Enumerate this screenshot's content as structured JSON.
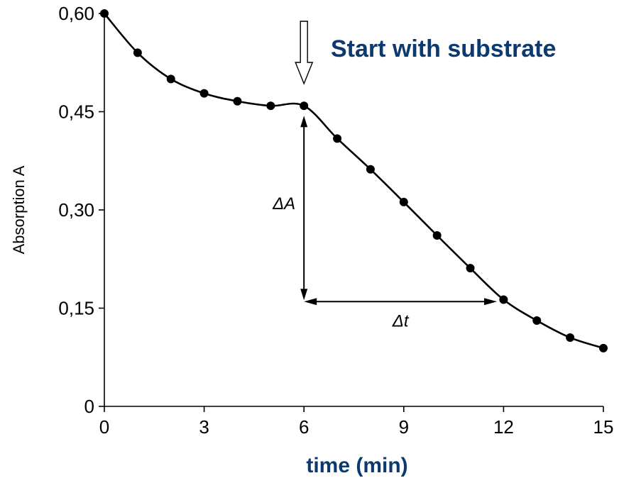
{
  "chart_data": {
    "type": "line",
    "title": "",
    "xlabel": "time (min)",
    "ylabel": "Absorption A",
    "xlim": [
      0,
      15
    ],
    "ylim": [
      0,
      0.6
    ],
    "xticks": [
      0,
      3,
      6,
      9,
      12,
      15
    ],
    "xtick_labels": [
      "0",
      "3",
      "6",
      "9",
      "12",
      "15"
    ],
    "yticks": [
      0,
      0.15,
      0.3,
      0.45,
      0.6
    ],
    "ytick_labels": [
      "0",
      "0,15",
      "0,30",
      "0,45",
      "0,60"
    ],
    "grid": false,
    "series": [
      {
        "x": [
          0,
          1,
          2,
          3,
          4,
          5,
          6,
          7,
          8,
          9,
          10,
          11,
          12,
          13,
          14,
          15
        ],
        "y": [
          0.6,
          0.54,
          0.5,
          0.478,
          0.466,
          0.459,
          0.459,
          0.409,
          0.362,
          0.312,
          0.261,
          0.211,
          0.163,
          0.131,
          0.105,
          0.089
        ]
      }
    ],
    "annotations": [
      {
        "text": "Start with substrate",
        "arrow_x": 6
      },
      {
        "text": "ΔA",
        "x": 6,
        "y_from": 0.459,
        "y_to": 0.16
      },
      {
        "text": "Δt",
        "y": 0.16,
        "x_from": 6,
        "x_to": 11.8
      }
    ]
  }
}
